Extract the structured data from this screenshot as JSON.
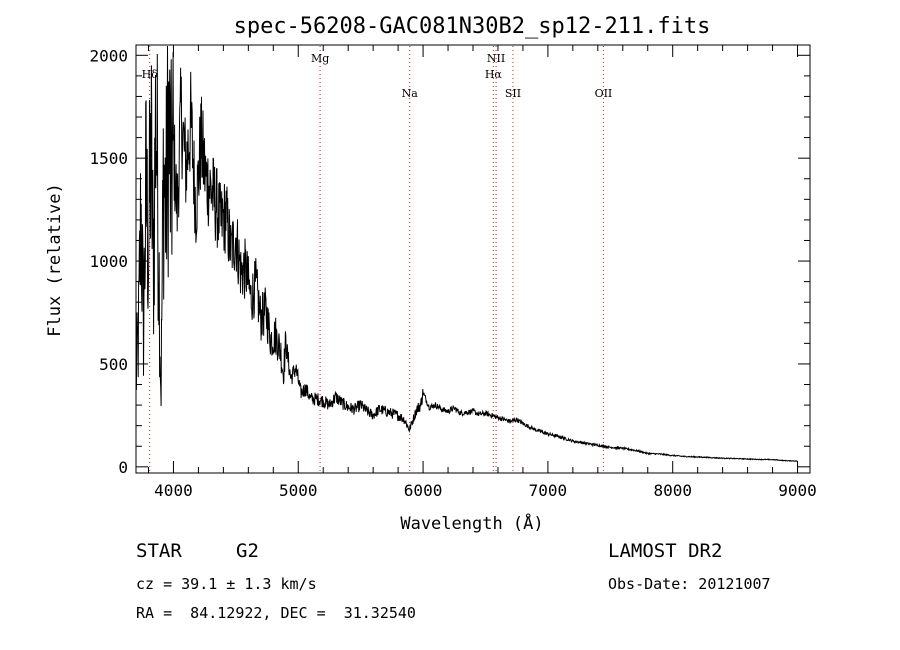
{
  "chart_data": {
    "type": "line",
    "title": "spec-56208-GAC081N30B2_sp12-211.fits",
    "xlabel": "Wavelength (Å)",
    "ylabel": "Flux (relative)",
    "xlim": [
      3700,
      9100
    ],
    "ylim": [
      -30,
      2050
    ],
    "xticks": [
      4000,
      5000,
      6000,
      7000,
      8000,
      9000
    ],
    "yticks": [
      0,
      500,
      1000,
      1500,
      2000
    ],
    "grid": false,
    "series": [
      {
        "x": [
          3700,
          3720,
          3740,
          3760,
          3780,
          3800,
          3820,
          3840,
          3860,
          3880,
          3900,
          3920,
          3940,
          3960,
          3980,
          4000,
          4030,
          4060,
          4100,
          4140,
          4180,
          4220,
          4260,
          4300,
          4340,
          4380,
          4420,
          4460,
          4500,
          4540,
          4580,
          4620,
          4660,
          4700,
          4740,
          4780,
          4820,
          4860,
          4880,
          4900,
          4940,
          4980,
          5020,
          5060,
          5100,
          5150,
          5200,
          5250,
          5300,
          5350,
          5400,
          5450,
          5500,
          5550,
          5600,
          5650,
          5700,
          5750,
          5800,
          5850,
          5890,
          5920,
          5950,
          5980,
          6000,
          6050,
          6100,
          6150,
          6200,
          6250,
          6300,
          6350,
          6400,
          6450,
          6500,
          6550,
          6600,
          6650,
          6700,
          6750,
          6800,
          6850,
          6900,
          6950,
          7000,
          7100,
          7200,
          7300,
          7400,
          7500,
          7600,
          7700,
          7800,
          7900,
          8000,
          8100,
          8200,
          8300,
          8400,
          8500,
          8600,
          8700,
          8800,
          8900,
          9000
        ],
        "y": [
          420,
          640,
          1250,
          680,
          1350,
          1050,
          1550,
          950,
          1780,
          1150,
          340,
          1450,
          1250,
          1680,
          1350,
          1550,
          1250,
          1720,
          1450,
          1680,
          1250,
          1580,
          1400,
          1350,
          1280,
          1180,
          1230,
          1050,
          1120,
          950,
          960,
          820,
          880,
          720,
          760,
          620,
          640,
          560,
          450,
          600,
          430,
          480,
          360,
          380,
          330,
          330,
          320,
          300,
          340,
          310,
          290,
          280,
          300,
          270,
          250,
          280,
          270,
          260,
          250,
          230,
          180,
          230,
          280,
          300,
          360,
          290,
          300,
          280,
          270,
          285,
          260,
          265,
          270,
          255,
          260,
          250,
          240,
          230,
          220,
          230,
          210,
          195,
          180,
          170,
          160,
          145,
          125,
          115,
          105,
          95,
          90,
          80,
          65,
          62,
          55,
          50,
          48,
          45,
          42,
          40,
          38,
          36,
          35,
          30,
          28
        ]
      }
    ],
    "line_marks": [
      {
        "label": "Hδ",
        "x": 3810,
        "row": 1
      },
      {
        "label": "Mg",
        "x": 5175,
        "row": 0
      },
      {
        "label": "Na",
        "x": 5893,
        "row": 2
      },
      {
        "label": "NII",
        "x": 6585,
        "row": 0
      },
      {
        "label": "Hα",
        "x": 6563,
        "row": 1
      },
      {
        "label": "SII",
        "x": 6720,
        "row": 2
      },
      {
        "label": "OII",
        "x": 7445,
        "row": 2
      }
    ],
    "mark_color": "#d02020"
  },
  "info": {
    "class_label": "STAR",
    "subclass": "G2",
    "survey": "LAMOST DR2",
    "cz_text": "cz = 39.1 ± 1.3 km/s",
    "obs_date": "Obs-Date: 20121007",
    "coords": "RA =  84.12922, DEC =  31.32540"
  }
}
